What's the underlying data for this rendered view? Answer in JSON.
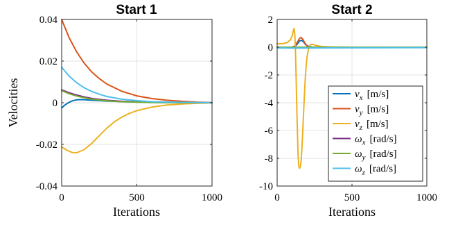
{
  "chart_data": [
    {
      "type": "line",
      "title": "Start 1",
      "xlabel": "Iterations",
      "ylabel": "Velocities",
      "xlim": [
        0,
        1000
      ],
      "ylim": [
        -0.04,
        0.04
      ],
      "xticks": [
        "0",
        "500",
        "1000"
      ],
      "yticks": [
        "0.04",
        "0.02",
        "0",
        "-0.02",
        "-0.04"
      ],
      "grid": true,
      "series": [
        {
          "color": "#0072BD",
          "x": [
            0,
            20,
            40,
            60,
            80,
            100,
            130,
            160,
            200,
            300,
            500,
            700,
            1000
          ],
          "y": [
            -0.0025,
            -0.0012,
            -0.0002,
            0.0006,
            0.0011,
            0.0014,
            0.0015,
            0.0014,
            0.0012,
            0.0008,
            0.0003,
            0.0001,
            0.0
          ]
        },
        {
          "color": "#D95319",
          "x": [
            0,
            50,
            100,
            150,
            200,
            250,
            300,
            400,
            500,
            600,
            700,
            800,
            900,
            1000
          ],
          "y": [
            0.04,
            0.0312,
            0.0244,
            0.019,
            0.0148,
            0.0116,
            0.009,
            0.0055,
            0.0033,
            0.002,
            0.0012,
            0.0007,
            0.0003,
            0.0001
          ]
        },
        {
          "color": "#EDB120",
          "x": [
            0,
            40,
            70,
            100,
            150,
            200,
            250,
            300,
            350,
            400,
            450,
            500,
            600,
            700,
            800,
            900,
            1000
          ],
          "y": [
            -0.0212,
            -0.023,
            -0.0239,
            -0.024,
            -0.0225,
            -0.0195,
            -0.0158,
            -0.0122,
            -0.0092,
            -0.0069,
            -0.0051,
            -0.0038,
            -0.0021,
            -0.0011,
            -0.0006,
            -0.0003,
            -0.0001
          ]
        },
        {
          "color": "#7E2F8E",
          "x": [
            0,
            50,
            100,
            150,
            200,
            300,
            400,
            500,
            600,
            800,
            1000
          ],
          "y": [
            0.0062,
            0.0048,
            0.0037,
            0.0028,
            0.0021,
            0.0012,
            0.0007,
            0.0004,
            0.0002,
            0.0001,
            0.0
          ]
        },
        {
          "color": "#77AC30",
          "x": [
            0,
            50,
            100,
            150,
            200,
            300,
            400,
            500,
            600,
            800,
            1000
          ],
          "y": [
            0.0058,
            0.0043,
            0.0032,
            0.0024,
            0.0017,
            0.0009,
            0.0005,
            0.0003,
            0.0001,
            0.0,
            0.0
          ]
        },
        {
          "color": "#4DBEEE",
          "x": [
            0,
            50,
            100,
            150,
            200,
            250,
            300,
            400,
            500,
            600,
            800,
            1000
          ],
          "y": [
            0.017,
            0.0128,
            0.0096,
            0.0072,
            0.0054,
            0.0041,
            0.003,
            0.0017,
            0.001,
            0.0005,
            0.0002,
            0.0
          ]
        }
      ]
    },
    {
      "type": "line",
      "title": "Start 2",
      "xlabel": "Iterations",
      "ylabel": "",
      "xlim": [
        0,
        1000
      ],
      "ylim": [
        -10,
        2
      ],
      "xticks": [
        "0",
        "500",
        "1000"
      ],
      "yticks": [
        "2",
        "0",
        "-2",
        "-4",
        "-6",
        "-8",
        "-10"
      ],
      "grid": true,
      "legend": "bottom-right",
      "series": [
        {
          "name": "v_x [m/s]",
          "color": "#0072BD",
          "x": [
            0,
            100,
            120,
            140,
            150,
            160,
            175,
            190,
            210,
            240,
            300,
            500,
            1000
          ],
          "y": [
            0,
            0,
            0.05,
            0.3,
            0.45,
            0.5,
            0.4,
            0.2,
            0.05,
            0.0,
            0,
            0,
            0
          ]
        },
        {
          "name": "v_y [m/s]",
          "color": "#D95319",
          "x": [
            0,
            100,
            120,
            140,
            150,
            160,
            170,
            180,
            195,
            210,
            230,
            260,
            500,
            1000
          ],
          "y": [
            0,
            0,
            0.1,
            0.45,
            0.65,
            0.7,
            0.6,
            0.4,
            0.15,
            0.02,
            0,
            0,
            0,
            0
          ]
        },
        {
          "name": "v_z [m/s]",
          "color": "#EDB120",
          "x": [
            0,
            40,
            70,
            90,
            100,
            108,
            114,
            118,
            122,
            126,
            130,
            135,
            140,
            145,
            150,
            155,
            160,
            165,
            170,
            175,
            180,
            185,
            190,
            195,
            200,
            205,
            210,
            215,
            220,
            230,
            240,
            250,
            270,
            300,
            350,
            400,
            500,
            700,
            1000
          ],
          "y": [
            0.25,
            0.25,
            0.35,
            0.55,
            0.8,
            1.2,
            1.35,
            0.9,
            -0.2,
            -1.8,
            -3.8,
            -6.0,
            -7.8,
            -8.6,
            -8.72,
            -8.6,
            -8.2,
            -7.4,
            -6.3,
            -5.1,
            -3.9,
            -2.8,
            -1.9,
            -1.2,
            -0.7,
            -0.35,
            -0.1,
            0.05,
            0.15,
            0.2,
            0.2,
            0.15,
            0.1,
            0.05,
            0.02,
            0.01,
            0,
            0,
            0
          ]
        },
        {
          "name": "ω_x [rad/s]",
          "color": "#7E2F8E",
          "x": [
            0,
            1000
          ],
          "y": [
            0,
            0
          ]
        },
        {
          "name": "ω_y [rad/s]",
          "color": "#77AC30",
          "x": [
            0,
            1000
          ],
          "y": [
            0,
            0
          ]
        },
        {
          "name": "ω_z [rad/s]",
          "color": "#4DBEEE",
          "x": [
            0,
            100,
            200,
            300,
            1000
          ],
          "y": [
            -0.05,
            -0.06,
            -0.06,
            -0.05,
            -0.03
          ]
        }
      ],
      "legend_entries": [
        {
          "sym": "v",
          "sub": "x",
          "unit": "[m/s]"
        },
        {
          "sym": "v",
          "sub": "y",
          "unit": "[m/s]"
        },
        {
          "sym": "v",
          "sub": "z",
          "unit": "[m/s]"
        },
        {
          "sym": "ω",
          "sub": "x",
          "unit": "[rad/s]"
        },
        {
          "sym": "ω",
          "sub": "y",
          "unit": "[rad/s]"
        },
        {
          "sym": "ω",
          "sub": "z",
          "unit": "[rad/s]"
        }
      ]
    }
  ]
}
